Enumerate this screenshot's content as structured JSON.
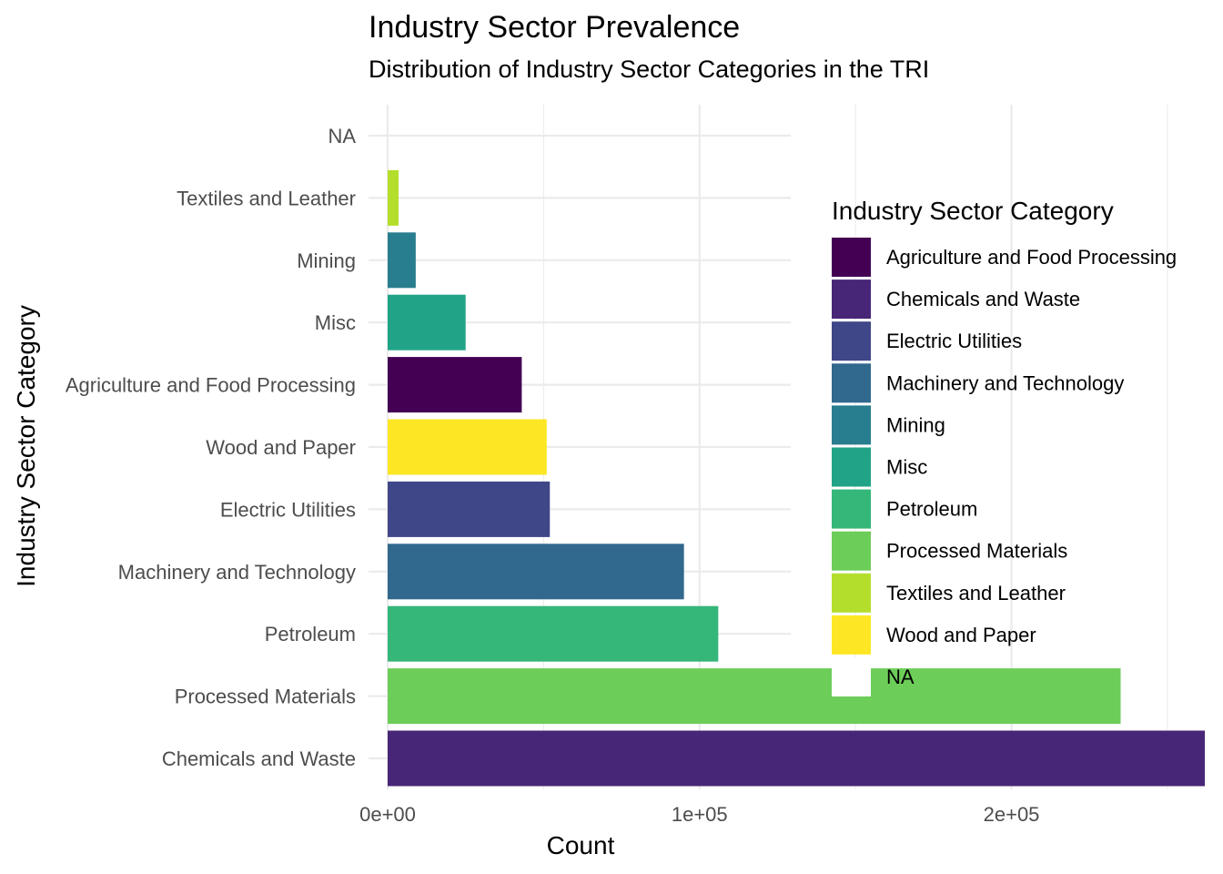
{
  "chart_data": {
    "type": "bar",
    "orientation": "horizontal",
    "title": "Industry Sector Prevalence",
    "subtitle": "Distribution of Industry Sector Categories in the TRI",
    "xlabel": "Count",
    "ylabel": "Industry Sector Category",
    "xlim": [
      0,
      275000
    ],
    "x_ticks": [
      0,
      100000,
      200000
    ],
    "x_tick_labels": [
      "0e+00",
      "1e+05",
      "2e+05"
    ],
    "grid": true,
    "legend_position": "right",
    "legend_title": "Industry Sector Category",
    "categories": [
      "Chemicals and Waste",
      "Processed Materials",
      "Petroleum",
      "Machinery and Technology",
      "Electric Utilities",
      "Wood and Paper",
      "Agriculture and Food Processing",
      "Misc",
      "Mining",
      "Textiles and Leather",
      "NA"
    ],
    "values": [
      262000,
      235000,
      106000,
      95000,
      52000,
      51000,
      43000,
      25000,
      9000,
      3500,
      0
    ],
    "bar_colors": [
      "#482677",
      "#6DCD59",
      "#35B779",
      "#31688E",
      "#3F4788",
      "#FDE725",
      "#440154",
      "#20A387",
      "#287D8E",
      "#B4DE2C",
      "#ffffff"
    ],
    "legend": [
      {
        "label": "Agriculture and Food Processing",
        "color": "#440154"
      },
      {
        "label": "Chemicals and Waste",
        "color": "#482677"
      },
      {
        "label": "Electric Utilities",
        "color": "#3F4788"
      },
      {
        "label": "Machinery and Technology",
        "color": "#31688E"
      },
      {
        "label": "Mining",
        "color": "#287D8E"
      },
      {
        "label": "Misc",
        "color": "#20A387"
      },
      {
        "label": "Petroleum",
        "color": "#35B779"
      },
      {
        "label": "Processed Materials",
        "color": "#6DCD59"
      },
      {
        "label": "Textiles and Leather",
        "color": "#B4DE2C"
      },
      {
        "label": "Wood and Paper",
        "color": "#FDE725"
      },
      {
        "label": "NA",
        "color": "#ffffff"
      }
    ]
  }
}
